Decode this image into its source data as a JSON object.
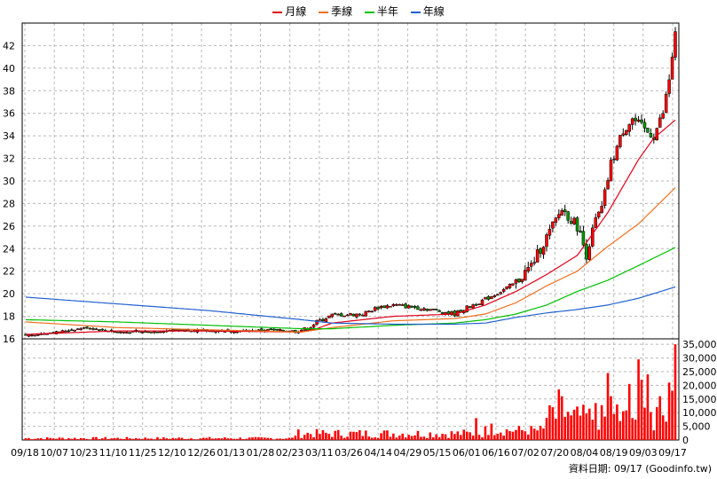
{
  "chart_data": {
    "type": "candlestick+line+bar",
    "legend": [
      {
        "name": "月線",
        "color": "#e0001b"
      },
      {
        "name": "季線",
        "color": "#f07020"
      },
      {
        "name": "半年",
        "color": "#00c000"
      },
      {
        "name": "年線",
        "color": "#2060d0"
      }
    ],
    "price_axis": {
      "ticks": [
        16,
        18,
        20,
        22,
        24,
        26,
        28,
        30,
        32,
        34,
        36,
        38,
        40,
        42
      ],
      "range": [
        16,
        44
      ]
    },
    "volume_axis": {
      "ticks": [
        "0",
        "5,000",
        "10,000",
        "15,000",
        "20,000",
        "25,000",
        "30,000",
        "35,000"
      ],
      "range": [
        0,
        35000
      ]
    },
    "x_labels": [
      "09/18",
      "10/07",
      "10/23",
      "11/10",
      "11/25",
      "12/10",
      "12/26",
      "01/13",
      "01/28",
      "02/23",
      "03/11",
      "03/26",
      "04/14",
      "04/29",
      "05/15",
      "06/01",
      "06/16",
      "07/02",
      "07/20",
      "08/04",
      "08/19",
      "09/03",
      "09/17"
    ],
    "close_points": [
      [
        0,
        16.3
      ],
      [
        10,
        16.6
      ],
      [
        20,
        17.0
      ],
      [
        30,
        16.6
      ],
      [
        40,
        16.6
      ],
      [
        50,
        16.8
      ],
      [
        60,
        16.7
      ],
      [
        70,
        16.7
      ],
      [
        80,
        16.8
      ],
      [
        88,
        16.7
      ],
      [
        92,
        16.9
      ],
      [
        95,
        17.5
      ],
      [
        100,
        18.1
      ],
      [
        110,
        18.2
      ],
      [
        115,
        18.8
      ],
      [
        120,
        19.0
      ],
      [
        130,
        18.7
      ],
      [
        140,
        18.2
      ],
      [
        145,
        18.9
      ],
      [
        150,
        19.5
      ],
      [
        155,
        20.2
      ],
      [
        160,
        21.0
      ],
      [
        165,
        22.5
      ],
      [
        170,
        25.0
      ],
      [
        175,
        27.5
      ],
      [
        180,
        26.0
      ],
      [
        183,
        23.5
      ],
      [
        186,
        26.5
      ],
      [
        188,
        27.5
      ],
      [
        191,
        31.5
      ],
      [
        195,
        34.5
      ],
      [
        198,
        35.5
      ],
      [
        202,
        34.5
      ],
      [
        205,
        34.0
      ],
      [
        208,
        36.0
      ],
      [
        210,
        39.0
      ],
      [
        212,
        43.0
      ]
    ],
    "ma_month": [
      [
        0,
        16.4
      ],
      [
        30,
        16.7
      ],
      [
        60,
        16.7
      ],
      [
        90,
        16.6
      ],
      [
        95,
        16.9
      ],
      [
        100,
        17.4
      ],
      [
        120,
        18.0
      ],
      [
        140,
        18.2
      ],
      [
        150,
        19.0
      ],
      [
        160,
        20.2
      ],
      [
        170,
        21.7
      ],
      [
        180,
        23.4
      ],
      [
        190,
        27.2
      ],
      [
        200,
        31.9
      ],
      [
        205,
        33.8
      ],
      [
        212,
        35.4
      ]
    ],
    "ma_quarter": [
      [
        0,
        17.5
      ],
      [
        30,
        17.0
      ],
      [
        60,
        16.8
      ],
      [
        90,
        16.6
      ],
      [
        100,
        17.0
      ],
      [
        120,
        17.6
      ],
      [
        140,
        17.8
      ],
      [
        150,
        18.2
      ],
      [
        160,
        19.2
      ],
      [
        170,
        20.7
      ],
      [
        180,
        22.0
      ],
      [
        190,
        24.2
      ],
      [
        200,
        26.2
      ],
      [
        212,
        29.4
      ]
    ],
    "ma_half": [
      [
        0,
        17.7
      ],
      [
        30,
        17.5
      ],
      [
        60,
        17.2
      ],
      [
        90,
        16.9
      ],
      [
        100,
        16.9
      ],
      [
        120,
        17.2
      ],
      [
        140,
        17.4
      ],
      [
        150,
        17.7
      ],
      [
        160,
        18.2
      ],
      [
        170,
        19.0
      ],
      [
        180,
        20.2
      ],
      [
        190,
        21.2
      ],
      [
        200,
        22.5
      ],
      [
        212,
        24.1
      ]
    ],
    "ma_year": [
      [
        0,
        19.7
      ],
      [
        30,
        19.1
      ],
      [
        60,
        18.5
      ],
      [
        90,
        17.7
      ],
      [
        100,
        17.4
      ],
      [
        120,
        17.3
      ],
      [
        140,
        17.3
      ],
      [
        150,
        17.4
      ],
      [
        160,
        17.9
      ],
      [
        170,
        18.3
      ],
      [
        180,
        18.6
      ],
      [
        190,
        19.0
      ],
      [
        200,
        19.6
      ],
      [
        212,
        20.6
      ]
    ],
    "source": "資料日期: 09/17 (Goodinfo.tw)"
  }
}
